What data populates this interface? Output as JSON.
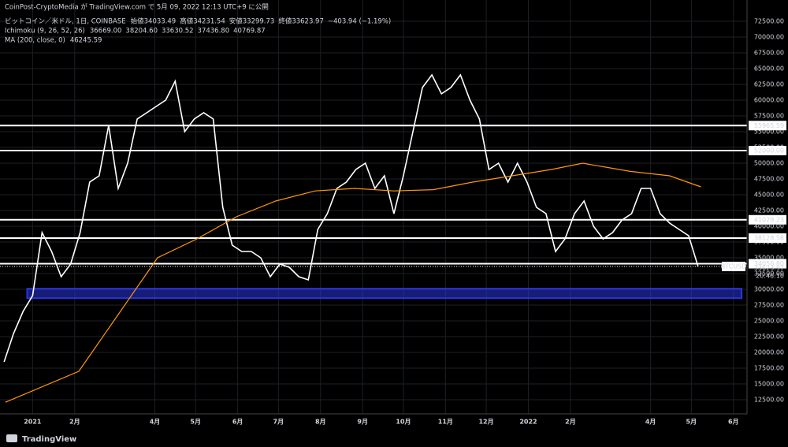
{
  "chart_data": {
    "type": "line",
    "publisher": "CoinPost-CryptoMedia が TradingView.com で 5月 09, 2022 12:13 UTC+9 に公開",
    "symbol": "ビットコイン／米ドル, 1日, COINBASE",
    "ohlc": [
      "始値34033.49",
      "高値34231.54",
      "安値33299.73",
      "終値33623.97",
      "−403.94 (−1.19%)"
    ],
    "ichimoku": {
      "name": "Ichimoku (9, 26, 52, 26)",
      "values": [
        {
          "label": "36669.00",
          "color": "#4a7dff"
        },
        {
          "label": "38204.60",
          "color": "#e03a3a"
        },
        {
          "label": "33630.52",
          "color": "#4caf50"
        },
        {
          "label": "37436.80",
          "color": "#66bb6a"
        },
        {
          "label": "40769.87",
          "color": "#ef5350"
        }
      ]
    },
    "ma": {
      "name": "MA (200, close, 0)",
      "label": "46245.59",
      "color": "#ff9800"
    },
    "brand": "TradingView",
    "xlim": [
      -24,
      526
    ],
    "ylim": [
      10250,
      75875
    ],
    "xticks": [
      {
        "value": 0,
        "label": "2021"
      },
      {
        "value": 31,
        "label": "2月"
      },
      {
        "value": 90,
        "label": "4月"
      },
      {
        "value": 120,
        "label": "5月"
      },
      {
        "value": 151,
        "label": "6月"
      },
      {
        "value": 181,
        "label": "7月"
      },
      {
        "value": 212,
        "label": "8月"
      },
      {
        "value": 243,
        "label": "9月"
      },
      {
        "value": 273,
        "label": "10月"
      },
      {
        "value": 304,
        "label": "11月"
      },
      {
        "value": 334,
        "label": "12月"
      },
      {
        "value": 365,
        "label": "2022"
      },
      {
        "value": 396,
        "label": "2月"
      },
      {
        "value": 455,
        "label": "4月"
      },
      {
        "value": 485,
        "label": "5月"
      },
      {
        "value": 516,
        "label": "6月"
      }
    ],
    "yticks": [
      {
        "value": 12500,
        "label": "12500.00"
      },
      {
        "value": 15000,
        "label": "15000.00"
      },
      {
        "value": 17500,
        "label": "17500.00"
      },
      {
        "value": 20000,
        "label": "20000.00"
      },
      {
        "value": 22500,
        "label": "22500.00"
      },
      {
        "value": 25000,
        "label": "25000.00"
      },
      {
        "value": 27500,
        "label": "27500.00"
      },
      {
        "value": 30000,
        "label": "30000.00"
      },
      {
        "value": 32500,
        "label": "32500.00"
      },
      {
        "value": 35000,
        "label": "35000.00"
      },
      {
        "value": 37500,
        "label": "37500.00"
      },
      {
        "value": 40000,
        "label": "40000.00"
      },
      {
        "value": 42500,
        "label": "42500.00"
      },
      {
        "value": 45000,
        "label": "45000.00"
      },
      {
        "value": 47500,
        "label": "47500.00"
      },
      {
        "value": 50000,
        "label": "50000.00"
      },
      {
        "value": 52500,
        "label": "52500.00"
      },
      {
        "value": 55000,
        "label": "55000.00"
      },
      {
        "value": 57500,
        "label": "57500.00"
      },
      {
        "value": 60000,
        "label": "60000.00"
      },
      {
        "value": 62500,
        "label": "62500.00"
      },
      {
        "value": 65000,
        "label": "65000.00"
      },
      {
        "value": 67500,
        "label": "67500.00"
      },
      {
        "value": 70000,
        "label": "70000.00"
      },
      {
        "value": 72500,
        "label": "72500.00"
      }
    ],
    "grid": true,
    "series": [
      {
        "name": "BTCUSD",
        "color": "#ffffff",
        "x": [
          -21,
          -14,
          -7,
          0,
          7,
          14,
          21,
          28,
          35,
          42,
          49,
          56,
          63,
          70,
          77,
          84,
          91,
          98,
          105,
          112,
          119,
          126,
          133,
          140,
          147,
          154,
          161,
          168,
          175,
          182,
          189,
          196,
          203,
          210,
          217,
          224,
          231,
          238,
          245,
          252,
          259,
          266,
          273,
          280,
          287,
          294,
          301,
          308,
          315,
          322,
          329,
          336,
          343,
          350,
          357,
          364,
          371,
          378,
          385,
          392,
          399,
          406,
          413,
          420,
          427,
          434,
          441,
          448,
          455,
          462,
          469,
          476,
          483,
          490
        ],
        "values": [
          18500,
          23000,
          26500,
          29000,
          39000,
          36000,
          32000,
          34000,
          39000,
          47000,
          48000,
          56000,
          46000,
          50000,
          57000,
          58000,
          59000,
          60000,
          63000,
          55000,
          57000,
          58000,
          57000,
          43000,
          37000,
          36000,
          36000,
          35000,
          32000,
          34000,
          33500,
          32000,
          31500,
          39500,
          42000,
          46000,
          47000,
          49000,
          50000,
          46000,
          48000,
          42000,
          48000,
          55000,
          62000,
          64000,
          61000,
          62000,
          64000,
          60000,
          57000,
          49000,
          50000,
          47000,
          50000,
          47000,
          43000,
          42000,
          36000,
          38000,
          42000,
          44000,
          40000,
          38000,
          39000,
          41000,
          42000,
          46000,
          46000,
          42000,
          40500,
          39500,
          38500,
          33623.97
        ]
      },
      {
        "name": "MA",
        "color": "#ff9800",
        "x": [
          -20,
          34,
          63,
          92,
          121,
          150,
          179,
          208,
          237,
          266,
          295,
          324,
          353,
          382,
          405,
          440,
          469,
          492
        ],
        "values": [
          12100,
          17000,
          26000,
          35000,
          38000,
          41500,
          44000,
          45600,
          46000,
          45600,
          45800,
          47000,
          48000,
          49000,
          50000,
          48700,
          48000,
          46245.59
        ]
      }
    ],
    "levels": [
      {
        "value": 55965.59,
        "label": "55965.59"
      },
      {
        "value": 52000,
        "label": "52000.00"
      },
      {
        "value": 41029.23,
        "label": "41029.23"
      },
      {
        "value": 38128.58,
        "label": "38128.58"
      },
      {
        "value": 34056.8,
        "label": "34056.80"
      }
    ],
    "last_price": {
      "name": "BTCUSD",
      "value": 33623.97,
      "label": "33623.97",
      "time": "20:46:10"
    },
    "zone": {
      "low": 28600,
      "high": 30100,
      "xlim": [
        -4,
        522
      ],
      "color": "#2a35d9"
    }
  }
}
